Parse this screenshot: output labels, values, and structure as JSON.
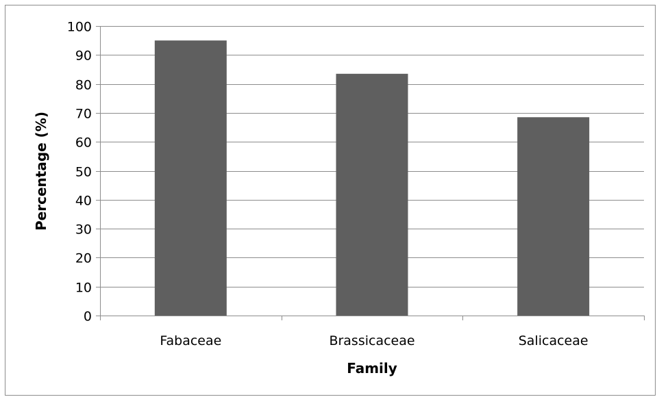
{
  "chart_data": {
    "type": "bar",
    "title": "",
    "xlabel": "Family",
    "ylabel": "Percentage (%)",
    "categories": [
      "Fabaceae",
      "Brassicaceae",
      "Salicaceae"
    ],
    "values": [
      95,
      83.5,
      68.5
    ],
    "ylim": [
      0,
      100
    ],
    "yticks": [
      0,
      10,
      20,
      30,
      40,
      50,
      60,
      70,
      80,
      90,
      100
    ],
    "grid": true,
    "legend": "none",
    "bar_color": "#5f5f5f",
    "gridline_color": "#8c8c8c"
  }
}
